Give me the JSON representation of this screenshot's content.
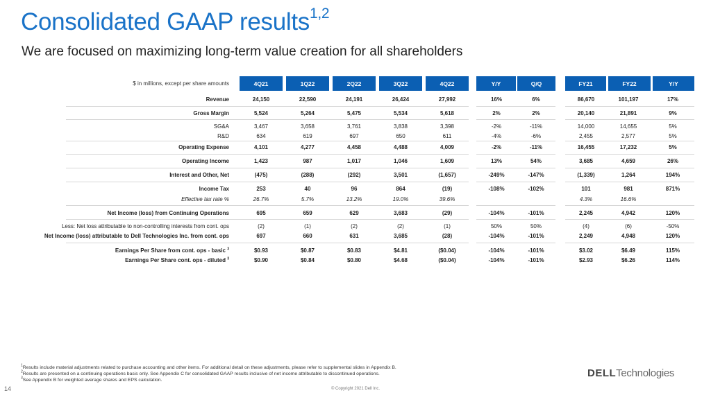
{
  "title": {
    "text": "Consolidated GAAP results",
    "sup": "1,2"
  },
  "subtitle": "We are focused on maximizing long-term value creation for all shareholders",
  "table": {
    "units_label": "$ in millions, except per share amounts",
    "headers": [
      "4Q21",
      "1Q22",
      "2Q22",
      "3Q22",
      "4Q22",
      "Y/Y",
      "Q/Q",
      "FY21",
      "FY22",
      "Y/Y"
    ],
    "rows": [
      {
        "label": "Revenue",
        "sup": "",
        "values": [
          "24,150",
          "22,590",
          "24,191",
          "26,424",
          "27,992",
          "16%",
          "6%",
          "86,670",
          "101,197",
          "17%"
        ]
      },
      {
        "label": "Gross Margin",
        "sup": "",
        "values": [
          "5,524",
          "5,264",
          "5,475",
          "5,534",
          "5,618",
          "2%",
          "2%",
          "20,140",
          "21,891",
          "9%"
        ]
      },
      {
        "label": "SG&A",
        "sup": "",
        "values": [
          "3,467",
          "3,658",
          "3,761",
          "3,838",
          "3,398",
          "-2%",
          "-11%",
          "14,000",
          "14,655",
          "5%"
        ]
      },
      {
        "label": "R&D",
        "sup": "",
        "values": [
          "634",
          "619",
          "697",
          "650",
          "611",
          "-4%",
          "-6%",
          "2,455",
          "2,577",
          "5%"
        ]
      },
      {
        "label": "Operating Expense",
        "sup": "",
        "values": [
          "4,101",
          "4,277",
          "4,458",
          "4,488",
          "4,009",
          "-2%",
          "-11%",
          "16,455",
          "17,232",
          "5%"
        ]
      },
      {
        "label": "Operating Income",
        "sup": "",
        "values": [
          "1,423",
          "987",
          "1,017",
          "1,046",
          "1,609",
          "13%",
          "54%",
          "3,685",
          "4,659",
          "26%"
        ]
      },
      {
        "label": "Interest and Other, Net",
        "sup": "",
        "values": [
          "(475)",
          "(288)",
          "(292)",
          "3,501",
          "(1,657)",
          "-249%",
          "-147%",
          "(1,339)",
          "1,264",
          "194%"
        ]
      },
      {
        "label": "Income Tax",
        "sup": "",
        "values": [
          "253",
          "40",
          "96",
          "864",
          "(19)",
          "-108%",
          "-102%",
          "101",
          "981",
          "871%"
        ]
      },
      {
        "label": "Effective tax rate %",
        "sup": "",
        "values": [
          "26.7%",
          "5.7%",
          "13.2%",
          "19.0%",
          "39.6%",
          "",
          "",
          "4.3%",
          "16.6%",
          ""
        ]
      },
      {
        "label": "Net Income (loss) from Continuing Operations",
        "sup": "",
        "values": [
          "695",
          "659",
          "629",
          "3,683",
          "(29)",
          "-104%",
          "-101%",
          "2,245",
          "4,942",
          "120%"
        ]
      },
      {
        "label": "Less: Net loss attributable to non-controlling interests from cont. ops",
        "sup": "",
        "values": [
          "(2)",
          "(1)",
          "(2)",
          "(2)",
          "(1)",
          "50%",
          "50%",
          "(4)",
          "(6)",
          "-50%"
        ]
      },
      {
        "label": "Net Income (loss) attributable to Dell Technologies Inc. from cont. ops",
        "sup": "",
        "values": [
          "697",
          "660",
          "631",
          "3,685",
          "(28)",
          "-104%",
          "-101%",
          "2,249",
          "4,948",
          "120%"
        ]
      },
      {
        "label": "Earnings Per Share from cont. ops - basic",
        "sup": "3",
        "values": [
          "$0.93",
          "$0.87",
          "$0.83",
          "$4.81",
          "($0.04)",
          "-104%",
          "-101%",
          "$3.02",
          "$6.49",
          "115%"
        ]
      },
      {
        "label": "Earnings Per Share cont. ops - diluted",
        "sup": "3",
        "values": [
          "$0.90",
          "$0.84",
          "$0.80",
          "$4.68",
          "($0.04)",
          "-104%",
          "-101%",
          "$2.93",
          "$6.26",
          "114%"
        ]
      }
    ]
  },
  "footnotes": [
    {
      "num": "1",
      "text": "Results include material adjustments related to purchase accounting and other items.  For additional detail on these adjustments, please refer to supplemental slides in Appendix B."
    },
    {
      "num": "2",
      "text": "Results are presented on a continuing operations basis only.  See Appendix C for consolidated GAAP results inclusive of net income attributable to discontinued operations."
    },
    {
      "num": "3",
      "text": "See Appendix B for weighted average shares and EPS calculation."
    }
  ],
  "page_number": "14",
  "copyright": "© Copyright 2021 Dell Inc.",
  "logo": {
    "dell": "DELL",
    "tech": "Technologies"
  },
  "colors": {
    "title": "#1a73c8",
    "header_fill": "#0b5fb3",
    "header_text": "#ffffff"
  }
}
